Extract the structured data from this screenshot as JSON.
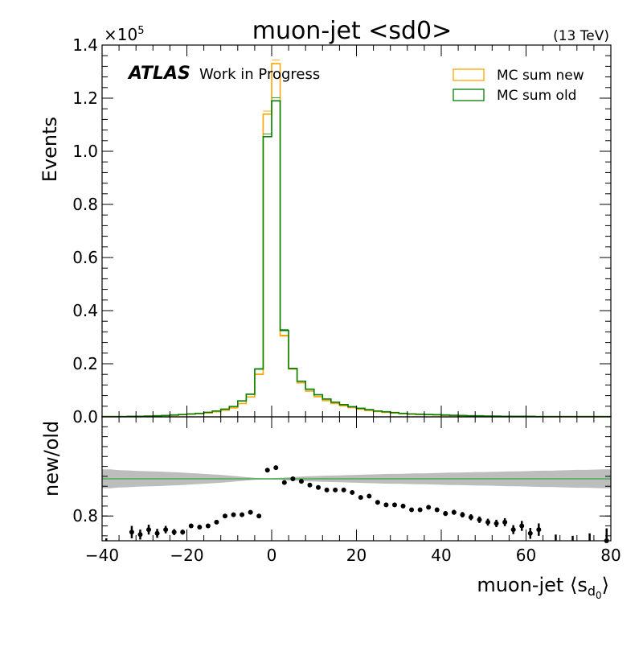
{
  "chart_data": [
    {
      "type": "line",
      "title": "muon-jet <sd0>",
      "energy_label": "(13 TeV)",
      "exponent_label": "×10",
      "exponent_power": "5",
      "ylabel": "Events",
      "ylim": [
        0,
        1.4
      ],
      "y_ticks": [
        "0.0",
        "0.2",
        "0.4",
        "0.6",
        "0.8",
        "1.0",
        "1.2",
        "1.4"
      ],
      "experiment_label": "ATLAS",
      "experiment_sublabel": "Work in Progress",
      "legend": {
        "placement": "top-right"
      },
      "bin_edges": [
        -40,
        -38,
        -36,
        -34,
        -32,
        -30,
        -28,
        -26,
        -24,
        -22,
        -20,
        -18,
        -16,
        -14,
        -12,
        -10,
        -8,
        -6,
        -4,
        -2,
        0,
        2,
        4,
        6,
        8,
        10,
        12,
        14,
        16,
        18,
        20,
        22,
        24,
        26,
        28,
        30,
        32,
        34,
        36,
        38,
        40,
        42,
        44,
        46,
        48,
        50,
        52,
        54,
        56,
        58,
        60,
        62,
        64,
        66,
        68,
        70,
        72,
        74,
        76,
        78,
        80
      ],
      "series": [
        {
          "name": "MC sum new",
          "color": "#ffa500",
          "values": [
            0.001,
            0.001,
            0.001,
            0.002,
            0.002,
            0.003,
            0.004,
            0.005,
            0.006,
            0.008,
            0.01,
            0.012,
            0.015,
            0.019,
            0.025,
            0.034,
            0.05,
            0.075,
            0.16,
            1.14,
            1.33,
            0.305,
            0.18,
            0.128,
            0.097,
            0.076,
            0.061,
            0.05,
            0.042,
            0.035,
            0.029,
            0.024,
            0.02,
            0.017,
            0.014,
            0.012,
            0.01,
            0.009,
            0.008,
            0.007,
            0.006,
            0.005,
            0.004,
            0.004,
            0.003,
            0.003,
            0.002,
            0.002,
            0.002,
            0.002,
            0.001,
            0.001,
            0.001,
            0.001,
            0.001,
            0.001,
            0.001,
            0.001,
            0.001,
            0.001
          ]
        },
        {
          "name": "MC sum old",
          "color": "#008000",
          "values": [
            0.001,
            0.001,
            0.001,
            0.002,
            0.002,
            0.003,
            0.004,
            0.005,
            0.007,
            0.009,
            0.011,
            0.013,
            0.017,
            0.022,
            0.029,
            0.039,
            0.06,
            0.085,
            0.18,
            1.055,
            1.19,
            0.325,
            0.182,
            0.134,
            0.104,
            0.083,
            0.067,
            0.055,
            0.046,
            0.038,
            0.032,
            0.027,
            0.022,
            0.019,
            0.016,
            0.013,
            0.011,
            0.01,
            0.009,
            0.008,
            0.007,
            0.006,
            0.005,
            0.004,
            0.004,
            0.003,
            0.003,
            0.002,
            0.002,
            0.002,
            0.002,
            0.001,
            0.001,
            0.001,
            0.001,
            0.001,
            0.001,
            0.001,
            0.001,
            0.001
          ]
        }
      ]
    },
    {
      "type": "scatter",
      "ylabel": "new/old",
      "xlabel_prefix": "muon-jet ",
      "xlabel_main": "s",
      "xlabel_sub": "d",
      "xlabel_subsub": "0",
      "xlim": [
        -40,
        80
      ],
      "ylim": [
        0.7,
        1.2
      ],
      "x_ticks": [
        "−40",
        "−20",
        "0",
        "20",
        "40",
        "60",
        "80"
      ],
      "y_ticks": [
        "0.8"
      ],
      "reference_line": {
        "y": 0.95,
        "color": "#4caf50"
      },
      "band": {
        "color": "#bdbdbd",
        "x": [
          -40,
          -38,
          -36,
          -34,
          -32,
          -30,
          -28,
          -26,
          -24,
          -22,
          -20,
          -18,
          -16,
          -14,
          -12,
          -10,
          -8,
          -6,
          -4,
          -2,
          0,
          2,
          4,
          6,
          8,
          10,
          12,
          14,
          16,
          18,
          20,
          22,
          24,
          26,
          28,
          30,
          32,
          34,
          36,
          38,
          40,
          42,
          44,
          46,
          48,
          50,
          52,
          54,
          56,
          58,
          60,
          62,
          64,
          66,
          68,
          70,
          72,
          74,
          76,
          78,
          80
        ],
        "half_width": [
          0.038,
          0.038,
          0.035,
          0.034,
          0.032,
          0.031,
          0.03,
          0.029,
          0.027,
          0.026,
          0.024,
          0.022,
          0.02,
          0.018,
          0.016,
          0.013,
          0.01,
          0.007,
          0.004,
          0.003,
          0.003,
          0.004,
          0.006,
          0.008,
          0.01,
          0.011,
          0.012,
          0.013,
          0.014,
          0.015,
          0.016,
          0.017,
          0.018,
          0.019,
          0.02,
          0.02,
          0.021,
          0.022,
          0.022,
          0.023,
          0.024,
          0.025,
          0.025,
          0.026,
          0.027,
          0.027,
          0.028,
          0.029,
          0.03,
          0.03,
          0.031,
          0.032,
          0.033,
          0.033,
          0.034,
          0.035,
          0.036,
          0.036,
          0.037,
          0.038,
          0.038
        ]
      },
      "points": [
        {
          "x": -39,
          "y": 0.68,
          "err": 0.03
        },
        {
          "x": -37,
          "y": 0.68,
          "err": 0.02
        },
        {
          "x": -33,
          "y": 0.735,
          "err": 0.025
        },
        {
          "x": -31,
          "y": 0.725,
          "err": 0.02
        },
        {
          "x": -29,
          "y": 0.745,
          "err": 0.02
        },
        {
          "x": -27,
          "y": 0.73,
          "err": 0.018
        },
        {
          "x": -25,
          "y": 0.745,
          "err": 0.015
        },
        {
          "x": -23,
          "y": 0.735,
          "err": 0.012
        },
        {
          "x": -21,
          "y": 0.735,
          "err": 0.01
        },
        {
          "x": -19,
          "y": 0.76,
          "err": 0.008
        },
        {
          "x": -17,
          "y": 0.755,
          "err": 0.007
        },
        {
          "x": -15,
          "y": 0.76,
          "err": 0.006
        },
        {
          "x": -13,
          "y": 0.775,
          "err": 0.005
        },
        {
          "x": -11,
          "y": 0.8,
          "err": 0.004
        },
        {
          "x": -9,
          "y": 0.805,
          "err": 0.004
        },
        {
          "x": -7,
          "y": 0.805,
          "err": 0.003
        },
        {
          "x": -5,
          "y": 0.815,
          "err": 0.003
        },
        {
          "x": -3,
          "y": 0.8,
          "err": 0.002
        },
        {
          "x": -1,
          "y": 0.985,
          "err": 0.001
        },
        {
          "x": 1,
          "y": 0.995,
          "err": 0.001
        },
        {
          "x": 3,
          "y": 0.935,
          "err": 0.002
        },
        {
          "x": 5,
          "y": 0.95,
          "err": 0.002
        },
        {
          "x": 7,
          "y": 0.94,
          "err": 0.003
        },
        {
          "x": 9,
          "y": 0.925,
          "err": 0.003
        },
        {
          "x": 11,
          "y": 0.915,
          "err": 0.003
        },
        {
          "x": 13,
          "y": 0.905,
          "err": 0.004
        },
        {
          "x": 15,
          "y": 0.905,
          "err": 0.004
        },
        {
          "x": 17,
          "y": 0.905,
          "err": 0.004
        },
        {
          "x": 19,
          "y": 0.895,
          "err": 0.005
        },
        {
          "x": 21,
          "y": 0.875,
          "err": 0.005
        },
        {
          "x": 23,
          "y": 0.88,
          "err": 0.005
        },
        {
          "x": 25,
          "y": 0.855,
          "err": 0.006
        },
        {
          "x": 27,
          "y": 0.845,
          "err": 0.006
        },
        {
          "x": 29,
          "y": 0.845,
          "err": 0.006
        },
        {
          "x": 31,
          "y": 0.84,
          "err": 0.007
        },
        {
          "x": 33,
          "y": 0.825,
          "err": 0.007
        },
        {
          "x": 35,
          "y": 0.825,
          "err": 0.008
        },
        {
          "x": 37,
          "y": 0.835,
          "err": 0.008
        },
        {
          "x": 39,
          "y": 0.825,
          "err": 0.009
        },
        {
          "x": 41,
          "y": 0.81,
          "err": 0.01
        },
        {
          "x": 43,
          "y": 0.815,
          "err": 0.01
        },
        {
          "x": 45,
          "y": 0.805,
          "err": 0.011
        },
        {
          "x": 47,
          "y": 0.795,
          "err": 0.012
        },
        {
          "x": 49,
          "y": 0.785,
          "err": 0.013
        },
        {
          "x": 51,
          "y": 0.775,
          "err": 0.014
        },
        {
          "x": 53,
          "y": 0.77,
          "err": 0.015
        },
        {
          "x": 55,
          "y": 0.775,
          "err": 0.016
        },
        {
          "x": 57,
          "y": 0.745,
          "err": 0.018
        },
        {
          "x": 59,
          "y": 0.76,
          "err": 0.02
        },
        {
          "x": 61,
          "y": 0.73,
          "err": 0.022
        },
        {
          "x": 63,
          "y": 0.745,
          "err": 0.025
        },
        {
          "x": 67,
          "y": 0.69,
          "err": 0.035
        },
        {
          "x": 71,
          "y": 0.68,
          "err": 0.04
        },
        {
          "x": 75,
          "y": 0.69,
          "err": 0.04
        },
        {
          "x": 79,
          "y": 0.7,
          "err": 0.05
        }
      ]
    }
  ]
}
